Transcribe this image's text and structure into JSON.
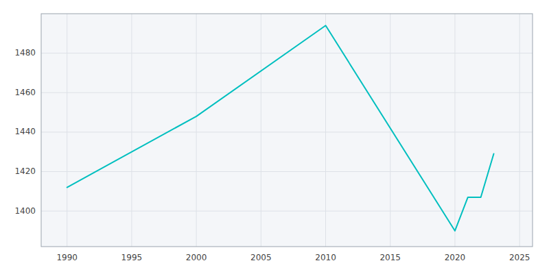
{
  "chart_data": {
    "type": "line",
    "x": [
      1990,
      2000,
      2010,
      2020,
      2021,
      2022,
      2023
    ],
    "values": [
      1412,
      1448,
      1494,
      1390,
      1407,
      1407,
      1429
    ],
    "color": "#00BFBF",
    "xlim": [
      1988,
      2026
    ],
    "ylim": [
      1382,
      1500
    ],
    "xticks": [
      1990,
      1995,
      2000,
      2005,
      2010,
      2015,
      2020,
      2025
    ],
    "yticks": [
      1400,
      1420,
      1440,
      1460,
      1480
    ],
    "grid": true
  }
}
